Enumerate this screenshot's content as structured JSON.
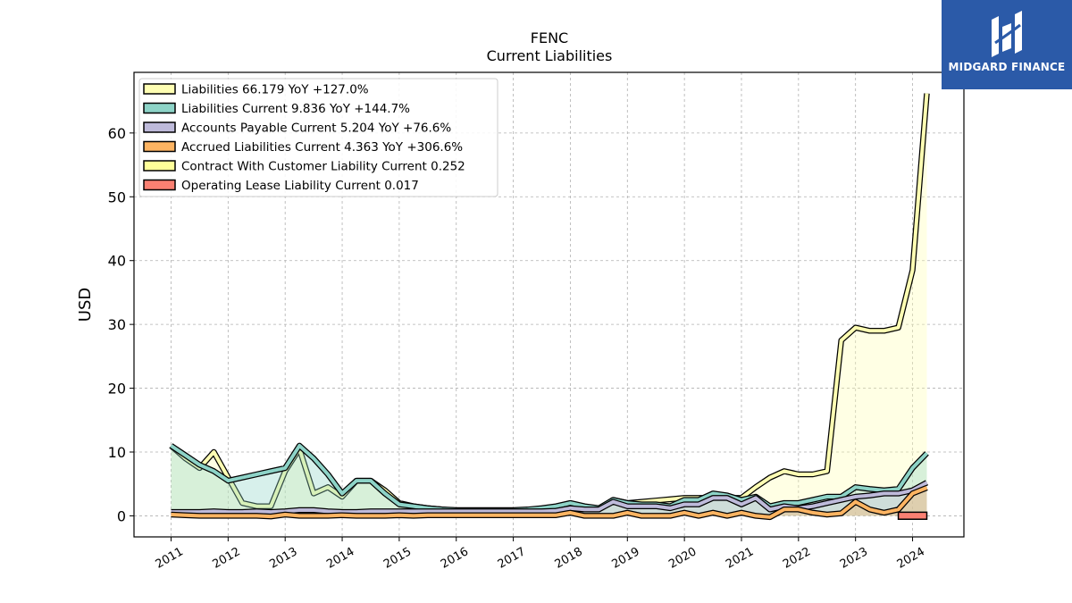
{
  "chart_data": {
    "type": "area",
    "title": "FENC",
    "subtitle": "Current  Liabilities",
    "ylabel": "USD",
    "ylim": [
      -3.3,
      69.5
    ],
    "xlim": [
      2010.35,
      2024.9
    ],
    "yticks": [
      0,
      10,
      20,
      30,
      40,
      50,
      60
    ],
    "xticks": [
      "2011",
      "2012",
      "2013",
      "2014",
      "2015",
      "2016",
      "2017",
      "2018",
      "2019",
      "2020",
      "2021",
      "2022",
      "2023",
      "2024"
    ],
    "grid": true,
    "legend_position": "top-left",
    "series": [
      {
        "name": "Liabilities",
        "legend": "Liabilities  66.179 YoY +127.0%",
        "color": "#ffffb3",
        "x": [
          2011.0,
          2011.25,
          2011.5,
          2011.75,
          2012.0,
          2012.25,
          2012.5,
          2012.75,
          2013.0,
          2013.25,
          2013.5,
          2013.75,
          2014.0,
          2014.25,
          2014.5,
          2014.75,
          2015.0,
          2015.25,
          2015.5,
          2015.75,
          2016.0,
          2016.25,
          2016.5,
          2016.75,
          2017.0,
          2017.25,
          2017.5,
          2017.75,
          2018.0,
          2018.25,
          2018.5,
          2018.75,
          2019.0,
          2019.25,
          2019.5,
          2019.75,
          2020.0,
          2020.25,
          2020.5,
          2020.75,
          2021.0,
          2021.25,
          2021.5,
          2021.75,
          2022.0,
          2022.25,
          2022.5,
          2022.75,
          2023.0,
          2023.25,
          2023.5,
          2023.75,
          2024.0,
          2024.25
        ],
        "values": [
          11.0,
          9.0,
          7.5,
          10.0,
          6.0,
          2.0,
          1.5,
          1.5,
          7.0,
          10.5,
          3.5,
          4.5,
          3.0,
          5.5,
          5.5,
          4.0,
          2.0,
          1.5,
          1.2,
          1.0,
          0.8,
          0.8,
          0.8,
          0.8,
          0.8,
          0.8,
          0.9,
          1.0,
          1.5,
          1.2,
          1.0,
          2.5,
          2.0,
          2.2,
          2.4,
          2.6,
          2.8,
          2.8,
          2.8,
          2.8,
          2.8,
          4.5,
          6.0,
          7.0,
          6.5,
          6.5,
          7.0,
          27.5,
          29.5,
          29.0,
          29.0,
          29.5,
          38.5,
          66.2
        ]
      },
      {
        "name": "Liabilities Current",
        "legend": "Liabilities Current  9.836 YoY +144.7%",
        "color": "#8dd3c7",
        "x": [
          2011.0,
          2011.25,
          2011.5,
          2011.75,
          2012.0,
          2012.25,
          2012.5,
          2012.75,
          2013.0,
          2013.25,
          2013.5,
          2013.75,
          2014.0,
          2014.25,
          2014.5,
          2014.75,
          2015.0,
          2015.25,
          2015.5,
          2015.75,
          2016.0,
          2016.25,
          2016.5,
          2016.75,
          2017.0,
          2017.25,
          2017.5,
          2017.75,
          2018.0,
          2018.25,
          2018.5,
          2018.75,
          2019.0,
          2019.25,
          2019.5,
          2019.75,
          2020.0,
          2020.25,
          2020.5,
          2020.75,
          2021.0,
          2021.25,
          2021.5,
          2021.75,
          2022.0,
          2022.25,
          2022.5,
          2022.75,
          2023.0,
          2023.25,
          2023.5,
          2023.75,
          2024.0,
          2024.25
        ],
        "values": [
          11.0,
          9.5,
          8.0,
          7.0,
          5.5,
          6.0,
          6.5,
          7.0,
          7.5,
          11.0,
          9.0,
          6.5,
          3.5,
          5.5,
          5.5,
          3.5,
          1.8,
          1.5,
          1.2,
          1.0,
          0.9,
          0.9,
          0.9,
          0.9,
          0.9,
          1.0,
          1.2,
          1.5,
          2.0,
          1.5,
          1.2,
          2.5,
          2.0,
          1.8,
          1.8,
          1.5,
          2.5,
          2.5,
          3.5,
          3.2,
          2.5,
          3.0,
          1.5,
          2.0,
          2.0,
          2.5,
          3.0,
          3.0,
          4.5,
          4.2,
          4.0,
          4.2,
          7.5,
          9.8
        ]
      },
      {
        "name": "Accounts Payable Current",
        "legend": "Accounts Payable Current  5.204 YoY +76.6%",
        "color": "#bebada",
        "x": [
          2011.0,
          2011.25,
          2011.5,
          2011.75,
          2012.0,
          2012.25,
          2012.5,
          2012.75,
          2013.0,
          2013.25,
          2013.5,
          2013.75,
          2014.0,
          2014.25,
          2014.5,
          2014.75,
          2015.0,
          2015.25,
          2015.5,
          2015.75,
          2016.0,
          2016.25,
          2016.5,
          2016.75,
          2017.0,
          2017.25,
          2017.5,
          2017.75,
          2018.0,
          2018.25,
          2018.5,
          2018.75,
          2019.0,
          2019.25,
          2019.5,
          2019.75,
          2020.0,
          2020.25,
          2020.5,
          2020.75,
          2021.0,
          2021.25,
          2021.5,
          2021.75,
          2022.0,
          2022.25,
          2022.5,
          2022.75,
          2023.0,
          2023.25,
          2023.5,
          2023.75,
          2024.0,
          2024.25
        ],
        "values": [
          0.6,
          0.6,
          0.6,
          0.7,
          0.6,
          0.6,
          0.7,
          0.6,
          0.7,
          0.9,
          0.9,
          0.7,
          0.6,
          0.6,
          0.7,
          0.7,
          0.7,
          0.7,
          0.7,
          0.7,
          0.7,
          0.7,
          0.7,
          0.7,
          0.7,
          0.7,
          0.7,
          0.8,
          1.2,
          1.0,
          1.0,
          2.2,
          1.5,
          1.5,
          1.5,
          1.2,
          1.8,
          1.8,
          2.8,
          2.8,
          1.8,
          2.8,
          1.0,
          1.5,
          1.2,
          1.5,
          2.0,
          2.5,
          3.0,
          3.2,
          3.5,
          3.5,
          4.0,
          5.2
        ]
      },
      {
        "name": "Accrued Liabilities Current",
        "legend": "Accrued Liabilities Current  4.363 YoY +306.6%",
        "color": "#fdb462",
        "x": [
          2011.0,
          2011.25,
          2011.5,
          2011.75,
          2012.0,
          2012.25,
          2012.5,
          2012.75,
          2013.0,
          2013.25,
          2013.5,
          2013.75,
          2014.0,
          2014.25,
          2014.5,
          2014.75,
          2015.0,
          2015.25,
          2015.5,
          2015.75,
          2016.0,
          2016.25,
          2016.5,
          2016.75,
          2017.0,
          2017.25,
          2017.5,
          2017.75,
          2018.0,
          2018.25,
          2018.5,
          2018.75,
          2019.0,
          2019.25,
          2019.5,
          2019.75,
          2020.0,
          2020.25,
          2020.5,
          2020.75,
          2021.0,
          2021.25,
          2021.5,
          2021.75,
          2022.0,
          2022.25,
          2022.5,
          2022.75,
          2023.0,
          2023.25,
          2023.5,
          2023.75,
          2024.0,
          2024.25
        ],
        "values": [
          0.2,
          0.1,
          0.0,
          0.0,
          0.0,
          0.0,
          0.0,
          -0.1,
          0.2,
          0.0,
          0.0,
          0.0,
          0.1,
          0.0,
          0.0,
          0.0,
          0.1,
          0.0,
          0.1,
          0.1,
          0.1,
          0.1,
          0.1,
          0.1,
          0.1,
          0.1,
          0.1,
          0.1,
          0.5,
          0.0,
          0.0,
          0.0,
          0.5,
          0.0,
          0.0,
          0.0,
          0.5,
          0.0,
          0.5,
          0.0,
          0.5,
          0.0,
          -0.2,
          1.0,
          1.0,
          0.5,
          0.2,
          0.4,
          2.2,
          1.0,
          0.5,
          1.0,
          3.5,
          4.4
        ]
      }
    ],
    "extra_series": [
      {
        "name": "Contract With Customer Liability Current",
        "legend": "Contract With Customer Liability Current  0.252",
        "color": "#ffff99"
      },
      {
        "name": "Operating Lease Liability Current",
        "legend": "Operating Lease Liability Current  0.017",
        "color": "#fb8072",
        "x": [
          2023.75,
          2024.25
        ],
        "values": [
          0.017,
          0.017
        ]
      }
    ]
  },
  "branding": {
    "logo_text": "MIDGARD FINANCE",
    "logo_bg": "#2b5aa8"
  }
}
